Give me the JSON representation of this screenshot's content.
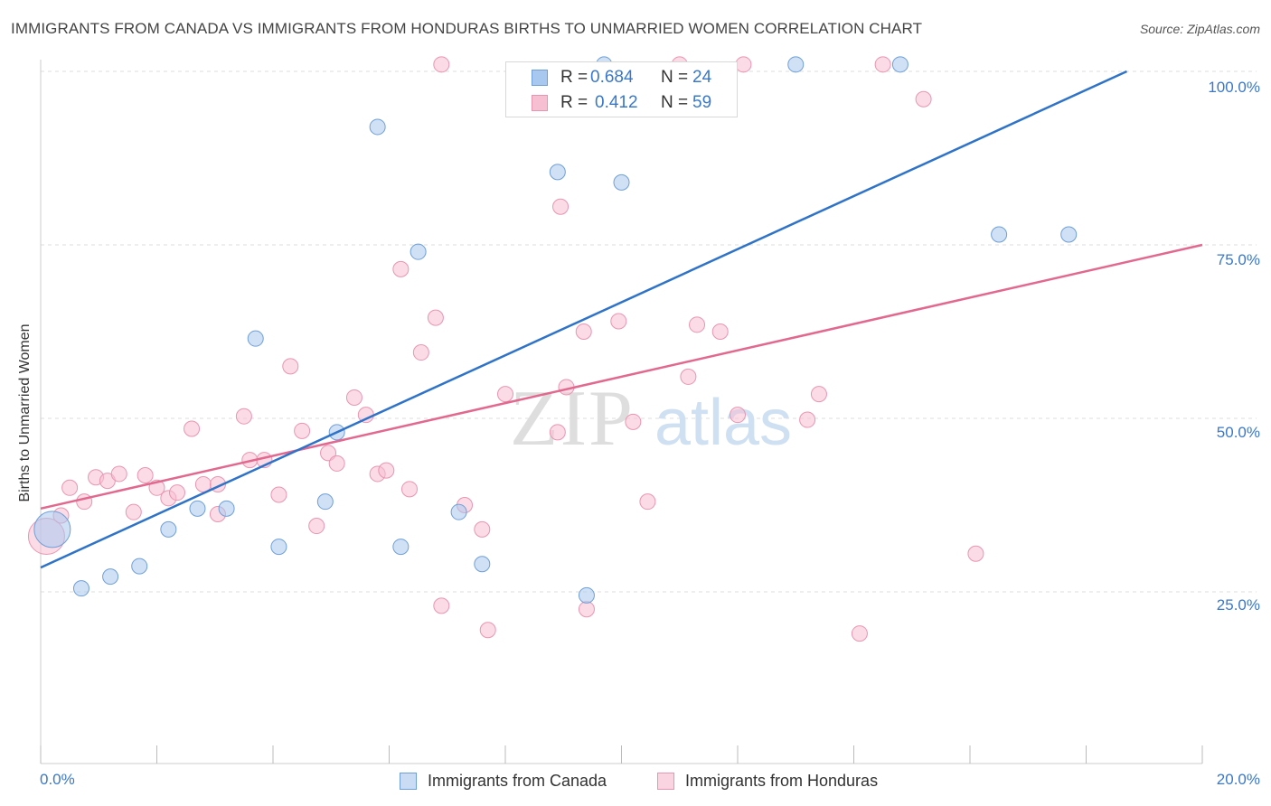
{
  "title": "IMMIGRANTS FROM CANADA VS IMMIGRANTS FROM HONDURAS BIRTHS TO UNMARRIED WOMEN CORRELATION CHART",
  "source": "Source: ZipAtlas.com",
  "watermark": {
    "zip": "ZIP",
    "atlas": "atlas"
  },
  "legend": {
    "canada": {
      "r_label": "R =",
      "r_value": "0.684",
      "n_label": "N =",
      "n_value": "24"
    },
    "honduras": {
      "r_label": "R =",
      "r_value": "0.412",
      "n_label": "N =",
      "n_value": "59"
    }
  },
  "bottom_legend": {
    "canada": "Immigrants from Canada",
    "honduras": "Immigrants from Honduras"
  },
  "colors": {
    "canada_fill": "#a9c8ef",
    "canada_stroke": "#6f9fd8",
    "canada_line": "#2f73c9",
    "honduras_fill": "#f7c0d2",
    "honduras_stroke": "#e995b2",
    "honduras_line": "#e2688f",
    "grid": "#dddddd",
    "tick_label": "#3a78c9"
  },
  "chart_data": {
    "type": "scatter",
    "title": "IMMIGRANTS FROM CANADA VS IMMIGRANTS FROM HONDURAS BIRTHS TO UNMARRIED WOMEN CORRELATION CHART",
    "xlabel": "",
    "ylabel": "Births to Unmarried Women",
    "xlim": [
      0,
      20
    ],
    "ylim": [
      0,
      102
    ],
    "x_tick_labels": [
      "0.0%",
      "20.0%"
    ],
    "y_ticks": [
      25,
      50,
      75,
      100
    ],
    "y_tick_labels": [
      "25.0%",
      "50.0%",
      "75.0%",
      "100.0%"
    ],
    "grid": true,
    "series": [
      {
        "name": "Immigrants from Canada",
        "r": 0.684,
        "n": 24,
        "trend": {
          "x": [
            0,
            18.7
          ],
          "y": [
            28.5,
            100
          ]
        },
        "points": [
          {
            "x": 0.2,
            "y": 34,
            "size": "large"
          },
          {
            "x": 0.7,
            "y": 25.5
          },
          {
            "x": 1.2,
            "y": 27.2
          },
          {
            "x": 1.7,
            "y": 28.7
          },
          {
            "x": 2.2,
            "y": 34
          },
          {
            "x": 2.7,
            "y": 37
          },
          {
            "x": 3.2,
            "y": 37
          },
          {
            "x": 3.7,
            "y": 61.5
          },
          {
            "x": 4.1,
            "y": 31.5
          },
          {
            "x": 4.9,
            "y": 38
          },
          {
            "x": 5.1,
            "y": 48
          },
          {
            "x": 5.8,
            "y": 92
          },
          {
            "x": 6.2,
            "y": 31.5
          },
          {
            "x": 6.5,
            "y": 74
          },
          {
            "x": 7.2,
            "y": 36.5
          },
          {
            "x": 7.6,
            "y": 29
          },
          {
            "x": 8.9,
            "y": 85.5
          },
          {
            "x": 9.4,
            "y": 24.5
          },
          {
            "x": 10.0,
            "y": 84
          },
          {
            "x": 13.0,
            "y": 101
          },
          {
            "x": 14.8,
            "y": 101
          },
          {
            "x": 16.5,
            "y": 76.5
          },
          {
            "x": 17.7,
            "y": 76.5
          },
          {
            "x": 9.7,
            "y": 101
          }
        ]
      },
      {
        "name": "Immigrants from Honduras",
        "r": 0.412,
        "n": 59,
        "trend": {
          "x": [
            0,
            20
          ],
          "y": [
            37,
            75
          ]
        },
        "points": [
          {
            "x": 0.1,
            "y": 33,
            "size": "large"
          },
          {
            "x": 0.35,
            "y": 36
          },
          {
            "x": 0.5,
            "y": 40
          },
          {
            "x": 0.75,
            "y": 38
          },
          {
            "x": 0.95,
            "y": 41.5
          },
          {
            "x": 1.15,
            "y": 41
          },
          {
            "x": 1.35,
            "y": 42
          },
          {
            "x": 1.6,
            "y": 36.5
          },
          {
            "x": 1.8,
            "y": 41.8
          },
          {
            "x": 2.0,
            "y": 40
          },
          {
            "x": 2.2,
            "y": 38.5
          },
          {
            "x": 2.35,
            "y": 39.3
          },
          {
            "x": 2.6,
            "y": 48.5
          },
          {
            "x": 2.8,
            "y": 40.5
          },
          {
            "x": 3.05,
            "y": 40.5
          },
          {
            "x": 3.05,
            "y": 36.2
          },
          {
            "x": 3.5,
            "y": 50.3
          },
          {
            "x": 3.6,
            "y": 44
          },
          {
            "x": 3.85,
            "y": 44
          },
          {
            "x": 4.1,
            "y": 39
          },
          {
            "x": 4.3,
            "y": 57.5
          },
          {
            "x": 4.5,
            "y": 48.2
          },
          {
            "x": 4.75,
            "y": 34.5
          },
          {
            "x": 4.95,
            "y": 45
          },
          {
            "x": 5.1,
            "y": 43.5
          },
          {
            "x": 5.4,
            "y": 53
          },
          {
            "x": 5.6,
            "y": 50.5
          },
          {
            "x": 5.8,
            "y": 42
          },
          {
            "x": 5.95,
            "y": 42.5
          },
          {
            "x": 6.2,
            "y": 71.5
          },
          {
            "x": 6.35,
            "y": 39.8
          },
          {
            "x": 6.55,
            "y": 59.5
          },
          {
            "x": 6.8,
            "y": 64.5
          },
          {
            "x": 6.9,
            "y": 23
          },
          {
            "x": 6.9,
            "y": 101
          },
          {
            "x": 7.3,
            "y": 37.5
          },
          {
            "x": 7.6,
            "y": 34
          },
          {
            "x": 7.7,
            "y": 19.5
          },
          {
            "x": 8.0,
            "y": 53.5
          },
          {
            "x": 8.9,
            "y": 48
          },
          {
            "x": 8.95,
            "y": 80.5
          },
          {
            "x": 9.05,
            "y": 54.5
          },
          {
            "x": 9.35,
            "y": 62.5
          },
          {
            "x": 9.4,
            "y": 22.5
          },
          {
            "x": 9.95,
            "y": 64
          },
          {
            "x": 10.2,
            "y": 49.5
          },
          {
            "x": 10.45,
            "y": 38
          },
          {
            "x": 11.0,
            "y": 101
          },
          {
            "x": 11.15,
            "y": 56
          },
          {
            "x": 11.3,
            "y": 63.5
          },
          {
            "x": 11.7,
            "y": 62.5
          },
          {
            "x": 12.0,
            "y": 50.5
          },
          {
            "x": 12.1,
            "y": 101
          },
          {
            "x": 13.2,
            "y": 49.8
          },
          {
            "x": 13.4,
            "y": 53.5
          },
          {
            "x": 14.1,
            "y": 19
          },
          {
            "x": 14.5,
            "y": 101
          },
          {
            "x": 15.2,
            "y": 96
          },
          {
            "x": 16.1,
            "y": 30.5
          }
        ]
      }
    ]
  }
}
